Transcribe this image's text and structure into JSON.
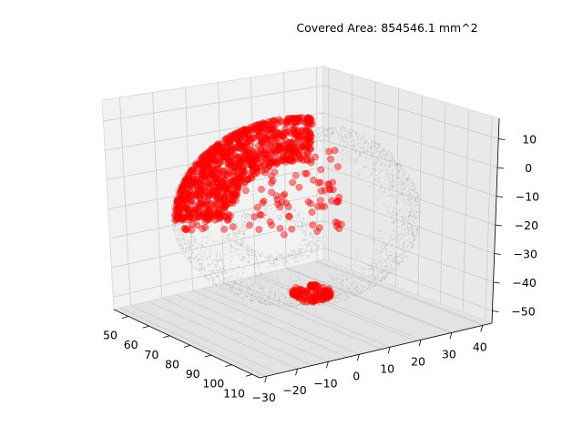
{
  "chart_data": {
    "type": "scatter",
    "title": "Covered Area: 854546.1 mm^2",
    "projection": "3d",
    "x_ticks": [
      "50",
      "60",
      "70",
      "80",
      "90",
      "100",
      "110"
    ],
    "y_ticks": [
      "−30",
      "−20",
      "−10",
      "0",
      "10",
      "20",
      "30",
      "40"
    ],
    "z_ticks": [
      "10",
      "0",
      "−10",
      "−20",
      "−30",
      "−40",
      "−50"
    ],
    "xlim": [
      47,
      116
    ],
    "ylim": [
      -33,
      42
    ],
    "zlim": [
      -54,
      17
    ],
    "grid": true,
    "series": [
      {
        "role": "surface",
        "color": "#888888",
        "marker": "dot",
        "count": 3000
      },
      {
        "role": "covered",
        "color": "#ff0000",
        "marker": "circle",
        "count": 1150
      }
    ],
    "covered_area_mm2": 854546.1
  }
}
